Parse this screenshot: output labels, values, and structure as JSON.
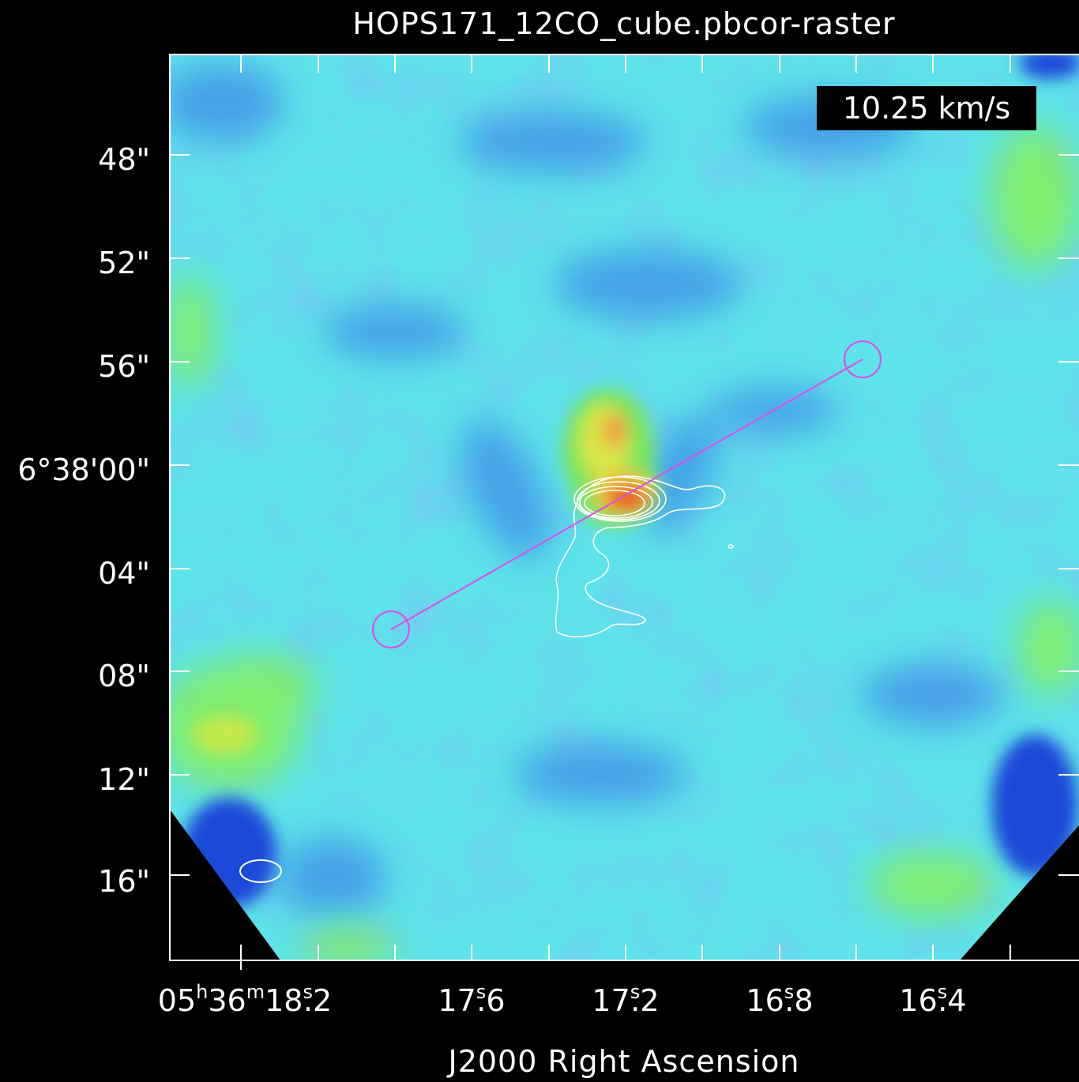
{
  "title": "HOPS171_12CO_cube.pbcor-raster",
  "velocity_label": "10.25 km/s",
  "x_axis_label": "J2000 Right Ascension",
  "dec_ticks": [
    "48\"",
    "52\"",
    "56\"",
    "6°38'00\"",
    "04\"",
    "08\"",
    "12\"",
    "16\""
  ],
  "ra_ticks": [
    {
      "h": "05",
      "m": "36",
      "s": "18",
      "frac": ".2"
    },
    {
      "s": "17",
      "frac": ".6"
    },
    {
      "s": "17",
      "frac": ".2"
    },
    {
      "s": "16",
      "frac": ".8"
    },
    {
      "s": "16",
      "frac": ".4"
    }
  ],
  "colors": {
    "background_map": "#5be6e6",
    "frame": "#ffffff",
    "contour": "#ffffff",
    "outflow_axis": "#e14ae8",
    "emission_peak": "#e8622a"
  }
}
